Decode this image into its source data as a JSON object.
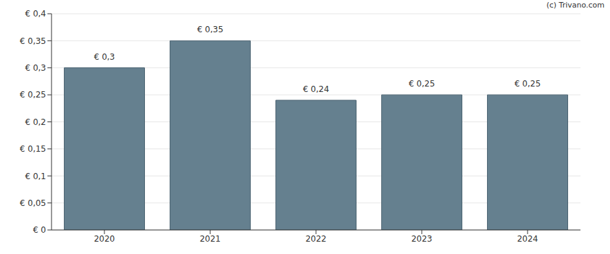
{
  "chart_data": {
    "type": "bar",
    "annotation": "(c) Trivano.com",
    "categories": [
      "2020",
      "2021",
      "2022",
      "2023",
      "2024"
    ],
    "values": [
      0.3,
      0.35,
      0.24,
      0.25,
      0.25
    ],
    "value_labels": [
      "€ 0,3",
      "€ 0,35",
      "€ 0,24",
      "€ 0,25",
      "€ 0,25"
    ],
    "data_labels": true,
    "color": "#65808f",
    "ylim": [
      0,
      0.4
    ],
    "yticks": [
      {
        "value": 0,
        "label": "€ 0"
      },
      {
        "value": 0.05,
        "label": "€ 0,05"
      },
      {
        "value": 0.1,
        "label": "€ 0,1"
      },
      {
        "value": 0.15,
        "label": "€ 0,15"
      },
      {
        "value": 0.2,
        "label": "€ 0,2"
      },
      {
        "value": 0.25,
        "label": "€ 0,25"
      },
      {
        "value": 0.3,
        "label": "€ 0,3"
      },
      {
        "value": 0.35,
        "label": "€ 0,35"
      },
      {
        "value": 0.4,
        "label": "€ 0,4"
      }
    ],
    "grid": true
  }
}
